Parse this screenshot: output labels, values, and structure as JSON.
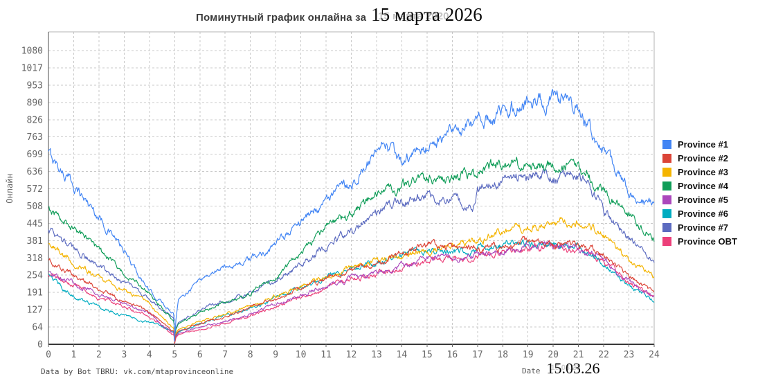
{
  "title": {
    "prefix": "Поминутный график онлайна за",
    "date": "15 марта 2026",
    "ghost": "15 марта 2020"
  },
  "y_axis_title": "Онлайн",
  "footer": {
    "credit": "Data by Bot TBRU: vk.com/mtaprovinceonline",
    "date_label": "Date",
    "date_value": "15.03.26",
    "date_ghost": "15.03.20"
  },
  "chart_data": {
    "type": "line",
    "title": "Поминутный график онлайна за 15 марта 2026",
    "xlabel": "",
    "ylabel": "Онлайн",
    "x_unit": "hour of day",
    "xlim": [
      0,
      24
    ],
    "ylim": [
      0,
      1080
    ],
    "grid": true,
    "grid_style": "dashed",
    "legend_position": "right",
    "x_ticks": [
      "0",
      "1",
      "2",
      "3",
      "4",
      "5",
      "6",
      "7",
      "8",
      "9",
      "10",
      "11",
      "12",
      "13",
      "14",
      "15",
      "16",
      "17",
      "18",
      "19",
      "20",
      "21",
      "22",
      "23",
      "24"
    ],
    "y_ticks": [
      "0",
      "64",
      "127",
      "191",
      "254",
      "318",
      "381",
      "445",
      "508",
      "572",
      "636",
      "699",
      "763",
      "826",
      "890",
      "953",
      "1017",
      "1080"
    ],
    "x": [
      0,
      1,
      2,
      3,
      4,
      4.9,
      4.97,
      5,
      5.05,
      5.15,
      6,
      7,
      8,
      9,
      10,
      11,
      12,
      13,
      13.4,
      14,
      15,
      16,
      16.9,
      17,
      18,
      19,
      20,
      21,
      21.4,
      22,
      23,
      24
    ],
    "series": [
      {
        "name": "Province #1",
        "color": "#4285F4",
        "values": [
          700,
          585,
          470,
          340,
          195,
          118,
          115,
          12,
          90,
          165,
          240,
          285,
          310,
          365,
          455,
          530,
          595,
          690,
          728,
          662,
          730,
          770,
          808,
          815,
          850,
          893,
          900,
          862,
          800,
          700,
          565,
          503
        ]
      },
      {
        "name": "Province #2",
        "color": "#DB4437",
        "values": [
          305,
          252,
          205,
          160,
          118,
          52,
          50,
          5,
          35,
          48,
          75,
          100,
          130,
          168,
          205,
          240,
          272,
          295,
          310,
          340,
          368,
          350,
          348,
          346,
          360,
          372,
          365,
          368,
          355,
          330,
          250,
          188
        ]
      },
      {
        "name": "Province #3",
        "color": "#F4B400",
        "values": [
          375,
          300,
          245,
          195,
          150,
          62,
          60,
          6,
          40,
          55,
          85,
          110,
          140,
          175,
          215,
          250,
          285,
          308,
          318,
          330,
          345,
          358,
          378,
          385,
          415,
          432,
          452,
          445,
          430,
          400,
          310,
          247
        ]
      },
      {
        "name": "Province #4",
        "color": "#0F9D58",
        "values": [
          508,
          425,
          345,
          262,
          188,
          90,
          88,
          8,
          55,
          75,
          118,
          152,
          190,
          245,
          335,
          425,
          485,
          545,
          558,
          585,
          605,
          620,
          632,
          638,
          655,
          658,
          662,
          648,
          620,
          560,
          470,
          395
        ]
      },
      {
        "name": "Province #5",
        "color": "#AB47BC",
        "values": [
          268,
          225,
          182,
          148,
          112,
          44,
          42,
          4,
          28,
          40,
          62,
          85,
          112,
          145,
          180,
          215,
          245,
          262,
          272,
          290,
          310,
          318,
          324,
          330,
          345,
          355,
          362,
          355,
          340,
          310,
          230,
          178
        ]
      },
      {
        "name": "Province #6",
        "color": "#00ACC1",
        "values": [
          252,
          175,
          135,
          105,
          80,
          48,
          46,
          5,
          32,
          45,
          78,
          105,
          135,
          170,
          208,
          245,
          278,
          298,
          308,
          330,
          342,
          338,
          344,
          350,
          363,
          372,
          368,
          358,
          345,
          300,
          215,
          158
        ]
      },
      {
        "name": "Province #7",
        "color": "#5C6BC0",
        "values": [
          415,
          350,
          290,
          228,
          170,
          100,
          98,
          10,
          60,
          80,
          130,
          160,
          188,
          228,
          290,
          360,
          420,
          478,
          500,
          528,
          542,
          540,
          505,
          560,
          608,
          625,
          610,
          618,
          590,
          484,
          390,
          306
        ]
      },
      {
        "name": "Province OBT",
        "color": "#EC407A",
        "values": [
          258,
          215,
          172,
          140,
          105,
          38,
          36,
          3,
          24,
          35,
          55,
          78,
          105,
          138,
          172,
          208,
          238,
          255,
          265,
          283,
          303,
          312,
          318,
          324,
          339,
          349,
          356,
          349,
          334,
          304,
          224,
          172
        ]
      }
    ]
  }
}
